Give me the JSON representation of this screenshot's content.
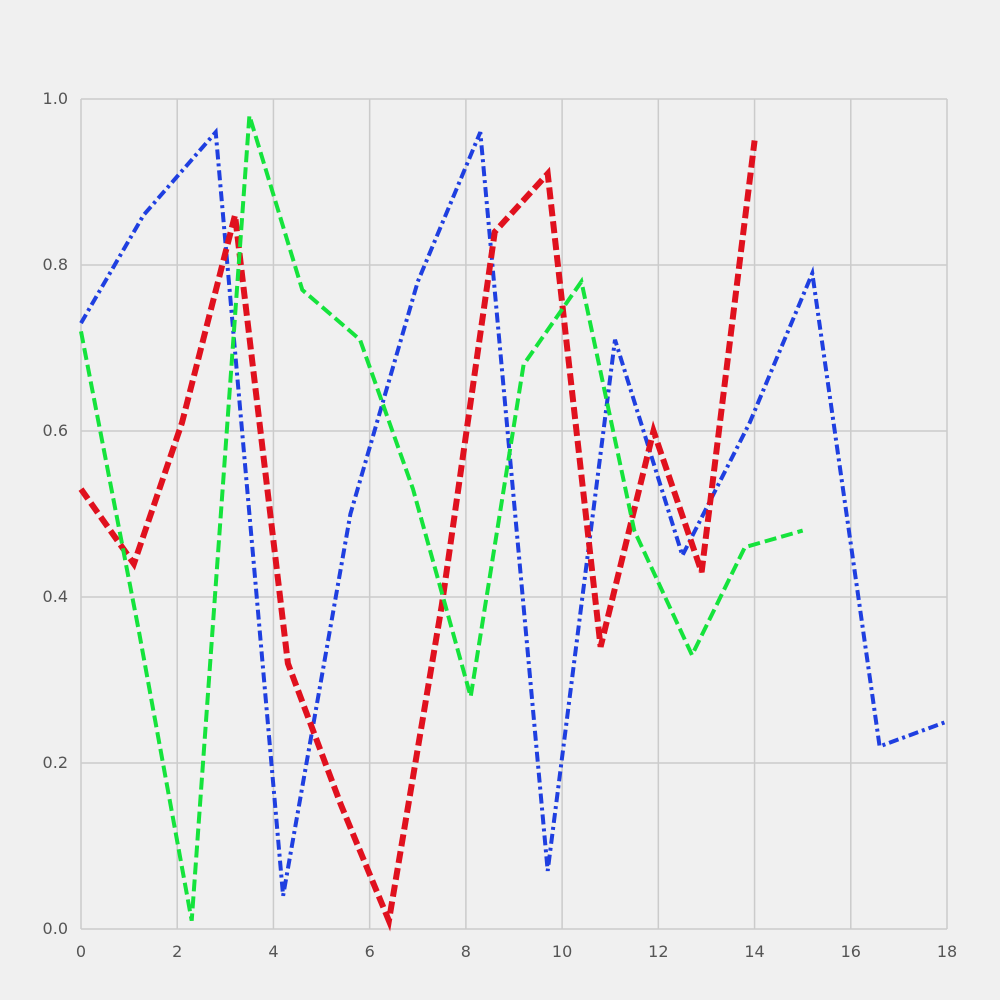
{
  "chart_data": {
    "type": "line",
    "title": "",
    "xlabel": "",
    "ylabel": "",
    "xlim": [
      0,
      18
    ],
    "ylim": [
      0,
      1
    ],
    "grid": true,
    "x_ticks": [
      "0",
      "2",
      "4",
      "6",
      "8",
      "10",
      "12",
      "14",
      "16",
      "18"
    ],
    "y_ticks": [
      "0.0",
      "0.2",
      "0.4",
      "0.6",
      "0.8",
      "1.0"
    ],
    "series": [
      {
        "color": "#1f3fe0",
        "style": "dashdot",
        "x": [
          0,
          1.3,
          2.8,
          4.2,
          5.6,
          7.0,
          8.3,
          9.7,
          11.1,
          12.5,
          13.9,
          15.2,
          16.6,
          18.0
        ],
        "y": [
          0.73,
          0.86,
          0.96,
          0.04,
          0.5,
          0.78,
          0.96,
          0.07,
          0.71,
          0.45,
          0.61,
          0.79,
          0.22,
          0.25
        ]
      },
      {
        "color": "#e0111e",
        "style": "dashed",
        "x": [
          0,
          1.1,
          2.1,
          3.2,
          4.3,
          5.4,
          6.4,
          7.5,
          8.6,
          9.7,
          10.8,
          11.9,
          12.9,
          14.0
        ],
        "y": [
          0.53,
          0.44,
          0.61,
          0.86,
          0.32,
          0.15,
          0.01,
          0.39,
          0.84,
          0.91,
          0.34,
          0.6,
          0.43,
          0.95
        ]
      },
      {
        "color": "#15e33c",
        "style": "dashed",
        "x": [
          0,
          1.2,
          2.3,
          3.5,
          4.6,
          5.8,
          6.9,
          8.1,
          9.2,
          10.4,
          11.5,
          12.7,
          13.8,
          15.0
        ],
        "y": [
          0.72,
          0.36,
          0.01,
          0.98,
          0.77,
          0.71,
          0.53,
          0.28,
          0.68,
          0.78,
          0.48,
          0.33,
          0.46,
          0.48
        ]
      }
    ]
  }
}
